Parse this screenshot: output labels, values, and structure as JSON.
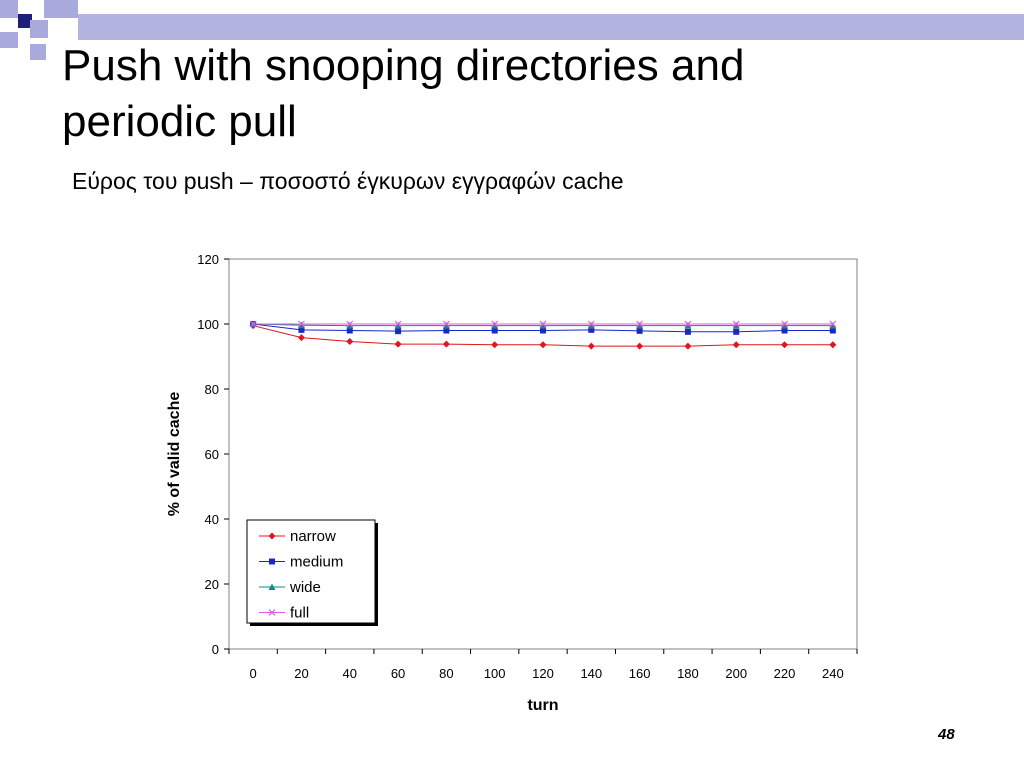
{
  "slide": {
    "title_line1": "Push with snooping directories and",
    "title_line2": "periodic pull",
    "subtitle": "Εύρος του push – ποσοστό έγκυρων εγγραφών cache",
    "page_number": "48",
    "colors": {
      "deco_dark": "#1f1f7a",
      "deco_light": "#a9a9dc",
      "title_bar": "#b4b4e0"
    }
  },
  "chart_data": {
    "type": "line",
    "title": "",
    "xlabel": "turn",
    "ylabel": "% of valid cache",
    "x": [
      0,
      20,
      40,
      60,
      80,
      100,
      120,
      140,
      160,
      180,
      200,
      220,
      240
    ],
    "ylim": [
      0,
      120
    ],
    "yticks": [
      0,
      20,
      40,
      60,
      80,
      100,
      120
    ],
    "grid": false,
    "legend_position": "lower-left",
    "series": [
      {
        "name": "narrow",
        "color": "#e0161b",
        "marker": "diamond",
        "values": [
          99.5,
          95.8,
          94.6,
          93.8,
          93.8,
          93.6,
          93.6,
          93.2,
          93.2,
          93.2,
          93.6,
          93.6,
          93.6
        ]
      },
      {
        "name": "medium",
        "color": "#1a27c9",
        "marker": "square",
        "values": [
          100,
          98.2,
          98.0,
          97.8,
          98.0,
          98.0,
          98.0,
          98.2,
          97.9,
          97.6,
          97.6,
          98.0,
          98.0
        ]
      },
      {
        "name": "wide",
        "color": "#128a8a",
        "marker": "triangle",
        "values": [
          100,
          99.6,
          99.5,
          99.5,
          99.5,
          99.5,
          99.5,
          99.5,
          99.5,
          99.5,
          99.5,
          99.5,
          99.5
        ]
      },
      {
        "name": "full",
        "color": "#e05ae0",
        "marker": "x",
        "values": [
          100,
          100,
          100,
          100,
          100,
          100,
          100,
          100,
          100,
          100,
          100,
          100,
          100
        ]
      }
    ]
  }
}
